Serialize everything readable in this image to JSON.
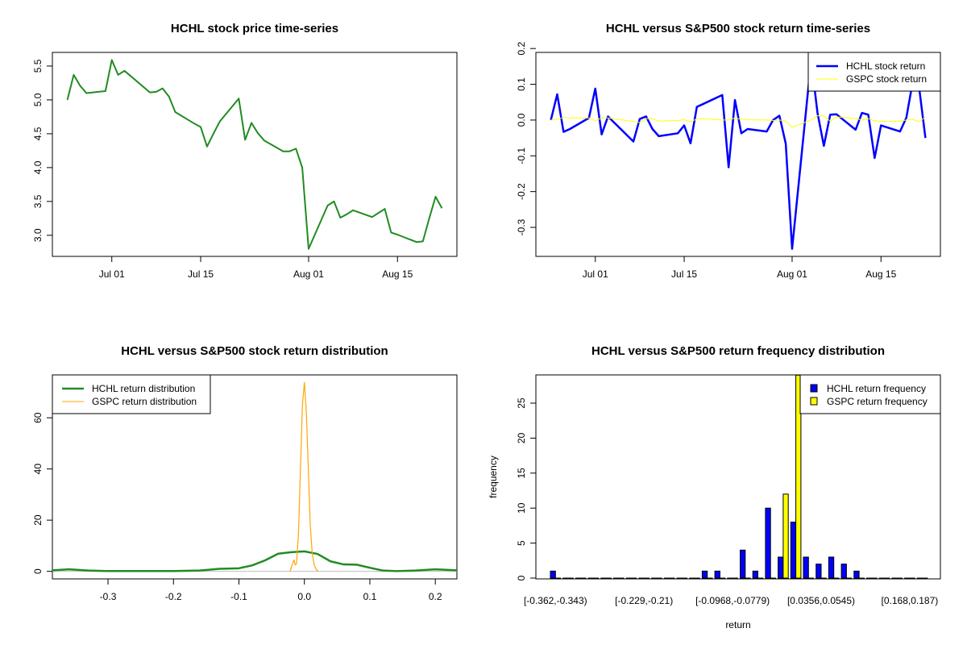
{
  "chart_data": [
    {
      "type": "line",
      "title": "HCHL stock price time-series",
      "xticks": [
        "Jul 01",
        "Jul 15",
        "Aug 01",
        "Aug 15"
      ],
      "xtick_dates": [
        "2014-07-01",
        "2014-07-15",
        "2014-0801",
        "2014-08-15"
      ],
      "yticks": [
        "3.0",
        "3.5",
        "4.0",
        "4.5",
        "5.0",
        "5.5"
      ],
      "color": "#228B22",
      "x": [
        "2014-06-24",
        "2014-06-25",
        "2014-06-26",
        "2014-06-27",
        "2014-06-30",
        "2014-07-01",
        "2014-07-02",
        "2014-07-03",
        "2014-07-07",
        "2014-07-08",
        "2014-07-09",
        "2014-07-10",
        "2014-07-11",
        "2014-07-14",
        "2014-07-15",
        "2014-07-16",
        "2014-07-17",
        "2014-07-18",
        "2014-07-21",
        "2014-07-22",
        "2014-07-23",
        "2014-07-24",
        "2014-07-25",
        "2014-07-28",
        "2014-07-29",
        "2014-07-30",
        "2014-07-31",
        "2014-08-01",
        "2014-08-04",
        "2014-08-05",
        "2014-08-06",
        "2014-08-07",
        "2014-08-08",
        "2014-08-11",
        "2014-08-12",
        "2014-08-13",
        "2014-08-14",
        "2014-08-15",
        "2014-08-18",
        "2014-08-19",
        "2014-08-20",
        "2014-08-21",
        "2014-08-22"
      ],
      "y": [
        5.0,
        5.37,
        5.21,
        5.1,
        5.13,
        5.59,
        5.37,
        5.43,
        5.11,
        5.12,
        5.17,
        5.05,
        4.82,
        4.65,
        4.6,
        4.31,
        4.5,
        4.68,
        5.02,
        4.41,
        4.66,
        4.51,
        4.4,
        4.24,
        4.24,
        4.28,
        4.0,
        2.8,
        3.44,
        3.5,
        3.26,
        3.31,
        3.37,
        3.27,
        3.33,
        3.39,
        3.04,
        3.01,
        2.9,
        2.91,
        3.25,
        3.57,
        3.4
      ]
    },
    {
      "type": "line",
      "title": "HCHL versus S&P500 stock return time-series",
      "xticks": [
        "Jul 01",
        "Jul 15",
        "Aug 01",
        "Aug 15"
      ],
      "yticks": [
        "-0.3",
        "-0.2",
        "-0.1",
        "0.0",
        "0.1",
        "0.2"
      ],
      "legend": "top-right",
      "series": [
        {
          "name": "HCHL stock return",
          "color": "#0000FF",
          "values": [
            0,
            0.072,
            -0.033,
            -0.025,
            0.006,
            0.088,
            -0.04,
            0.01,
            -0.06,
            0.003,
            0.01,
            -0.025,
            -0.045,
            -0.037,
            -0.015,
            -0.065,
            0.037,
            0.045,
            0.07,
            -0.132,
            0.056,
            -0.037,
            -0.025,
            -0.032,
            0,
            0.012,
            -0.066,
            -0.36,
            0.168,
            0.02,
            -0.072,
            0.015,
            0.016,
            -0.027,
            0.02,
            0.015,
            -0.106,
            -0.015,
            -0.032,
            0.007,
            0.107,
            0.092,
            -0.05
          ]
        },
        {
          "name": "GSPC stock return",
          "color": "#FFFF00",
          "values": [
            0,
            0.002,
            0.007,
            0.006,
            0.006,
            -0.002,
            0.006,
            0.006,
            -0.004,
            -0.007,
            0.004,
            0.004,
            -0.003,
            -0.001,
            0.001,
            -0.005,
            0.003,
            0.004,
            0,
            0,
            0.006,
            0.002,
            0.001,
            0,
            -0.001,
            0,
            -0.003,
            -0.02,
            0,
            0.012,
            0.012,
            -0.003,
            0.009,
            0.004,
            0,
            0.004,
            -0.002,
            -0.004,
            -0.003,
            0,
            0.002,
            -0.004,
            0.008
          ]
        }
      ]
    },
    {
      "type": "line",
      "title": "HCHL versus S&P500 stock return distribution",
      "xlim": [
        -0.385,
        0.233
      ],
      "ylim": [
        0,
        73.8
      ],
      "xticks": [
        "-0.3",
        "-0.2",
        "-0.1",
        "0.0",
        "0.1",
        "0.2"
      ],
      "yticks": [
        "0",
        "20",
        "40",
        "60"
      ],
      "legend": "top-left",
      "series": [
        {
          "name": "HCHL return distribution",
          "color": "#228B22",
          "x": [
            -0.385,
            -0.36,
            -0.33,
            -0.3,
            -0.25,
            -0.2,
            -0.16,
            -0.13,
            -0.1,
            -0.08,
            -0.06,
            -0.04,
            -0.02,
            0,
            0.02,
            0.04,
            0.06,
            0.08,
            0.1,
            0.12,
            0.14,
            0.17,
            0.2,
            0.233
          ],
          "y": [
            0.4,
            0.8,
            0.3,
            0.1,
            0.1,
            0.1,
            0.3,
            1.0,
            1.2,
            2.3,
            4.3,
            6.9,
            7.5,
            7.8,
            6.8,
            3.9,
            2.7,
            2.6,
            1.4,
            0.3,
            0.1,
            0.3,
            0.8,
            0.4
          ]
        },
        {
          "name": "GSPC return distribution",
          "color": "#FFA500",
          "x": [
            -0.022,
            -0.018,
            -0.016,
            -0.014,
            -0.012,
            -0.009,
            -0.006,
            -0.003,
            0,
            0.003,
            0.006,
            0.009,
            0.012,
            0.015,
            0.018,
            0.021
          ],
          "y": [
            0,
            3,
            4.5,
            2.5,
            3,
            15,
            40,
            65,
            73.8,
            62,
            40,
            18,
            7,
            2.5,
            0.8,
            0
          ]
        }
      ]
    },
    {
      "type": "bar",
      "title": "HCHL versus S&P500 return frequency distribution",
      "xlabel": "return",
      "ylabel": "frequency",
      "ylim": [
        0,
        29
      ],
      "yticks": [
        "0",
        "5",
        "10",
        "15",
        "20",
        "25"
      ],
      "category_labels": [
        "[-0.362,-0.343)",
        "[-0.229,-0.21)",
        "[-0.0968,-0.0779)",
        "[0.0356,0.0545)",
        "[0.168,0.187)"
      ],
      "category_label_bins": [
        0,
        7,
        14,
        21,
        28
      ],
      "legend": "top-right",
      "series": [
        {
          "name": "HCHL return frequency",
          "color": "#0000FF",
          "values": [
            1,
            0,
            0,
            0,
            0,
            0,
            0,
            0,
            0,
            0,
            0,
            0,
            1,
            1,
            0,
            4,
            1,
            10,
            3,
            8,
            3,
            2,
            3,
            2,
            1,
            0,
            0,
            0,
            0,
            0
          ]
        },
        {
          "name": "GSPC return frequency",
          "color": "#FFFF00",
          "values": [
            0,
            0,
            0,
            0,
            0,
            0,
            0,
            0,
            0,
            0,
            0,
            0,
            0,
            0,
            0,
            0,
            0,
            0,
            12,
            29,
            0,
            0,
            0,
            0,
            0,
            0,
            0,
            0,
            0,
            0
          ]
        }
      ]
    }
  ]
}
